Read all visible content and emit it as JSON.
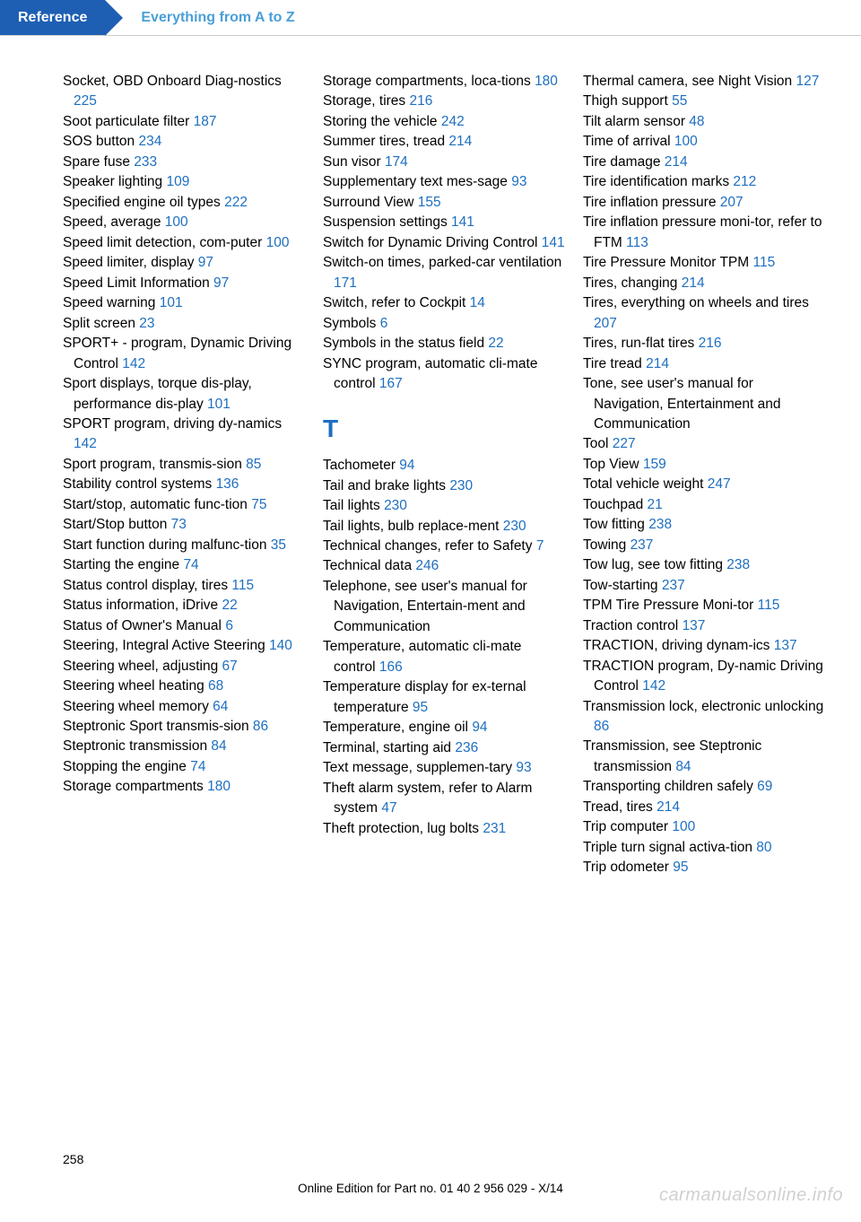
{
  "header": {
    "tab": "Reference",
    "title": "Everything from A to Z"
  },
  "link_color": "#1e6fc0",
  "text_color": "#000000",
  "tab_bg": "#1e5fb4",
  "columns": [
    {
      "entries": [
        {
          "text": "Socket, OBD Onboard Diag‐nostics",
          "page": "225"
        },
        {
          "text": "Soot particulate filter",
          "page": "187"
        },
        {
          "text": "SOS button",
          "page": "234"
        },
        {
          "text": "Spare fuse",
          "page": "233"
        },
        {
          "text": "Speaker lighting",
          "page": "109"
        },
        {
          "text": "Specified engine oil types",
          "page": "222"
        },
        {
          "text": "Speed, average",
          "page": "100"
        },
        {
          "text": "Speed limit detection, com‐puter",
          "page": "100"
        },
        {
          "text": "Speed limiter, display",
          "page": "97"
        },
        {
          "text": "Speed Limit Information",
          "page": "97"
        },
        {
          "text": "Speed warning",
          "page": "101"
        },
        {
          "text": "Split screen",
          "page": "23"
        },
        {
          "text": "SPORT+ - program, Dynamic Driving Control",
          "page": "142"
        },
        {
          "text": "Sport displays, torque dis‐play, performance dis‐play",
          "page": "101"
        },
        {
          "text": "SPORT program, driving dy‐namics",
          "page": "142"
        },
        {
          "text": "Sport program, transmis‐sion",
          "page": "85"
        },
        {
          "text": "Stability control systems",
          "page": "136"
        },
        {
          "text": "Start/stop, automatic func‐tion",
          "page": "75"
        },
        {
          "text": "Start/Stop button",
          "page": "73"
        },
        {
          "text": "Start function during malfunc‐tion",
          "page": "35"
        },
        {
          "text": "Starting the engine",
          "page": "74"
        },
        {
          "text": "Status control display, tires",
          "page": "115"
        },
        {
          "text": "Status information, iDrive",
          "page": "22"
        },
        {
          "text": "Status of Owner's Manual",
          "page": "6"
        },
        {
          "text": "Steering, Integral Active Steering",
          "page": "140"
        },
        {
          "text": "Steering wheel, adjusting",
          "page": "67"
        },
        {
          "text": "Steering wheel heating",
          "page": "68"
        },
        {
          "text": "Steering wheel memory",
          "page": "64"
        },
        {
          "text": "Steptronic Sport transmis‐sion",
          "page": "86"
        },
        {
          "text": "Steptronic transmission",
          "page": "84"
        },
        {
          "text": "Stopping the engine",
          "page": "74"
        },
        {
          "text": "Storage compartments",
          "page": "180"
        }
      ]
    },
    {
      "entries": [
        {
          "text": "Storage compartments, loca‐tions",
          "page": "180"
        },
        {
          "text": "Storage, tires",
          "page": "216"
        },
        {
          "text": "Storing the vehicle",
          "page": "242"
        },
        {
          "text": "Summer tires, tread",
          "page": "214"
        },
        {
          "text": "Sun visor",
          "page": "174"
        },
        {
          "text": "Supplementary text mes‐sage",
          "page": "93"
        },
        {
          "text": "Surround View",
          "page": "155"
        },
        {
          "text": "Suspension settings",
          "page": "141"
        },
        {
          "text": "Switch for Dynamic Driving Control",
          "page": "141"
        },
        {
          "text": "Switch-on times, parked-car ventilation",
          "page": "171"
        },
        {
          "text": "Switch, refer to Cockpit",
          "page": "14"
        },
        {
          "text": "Symbols",
          "page": "6"
        },
        {
          "text": "Symbols in the status field",
          "page": "22"
        },
        {
          "text": "SYNC program, automatic cli‐mate control",
          "page": "167"
        }
      ],
      "section": "T",
      "entries2": [
        {
          "text": "Tachometer",
          "page": "94"
        },
        {
          "text": "Tail and brake lights",
          "page": "230"
        },
        {
          "text": "Tail lights",
          "page": "230"
        },
        {
          "text": "Tail lights, bulb replace‐ment",
          "page": "230"
        },
        {
          "text": "Technical changes, refer to Safety",
          "page": "7"
        },
        {
          "text": "Technical data",
          "page": "246"
        },
        {
          "text": "Telephone, see user's manual for Navigation, Entertain‐ment and Communication",
          "page": ""
        },
        {
          "text": "Temperature, automatic cli‐mate control",
          "page": "166"
        },
        {
          "text": "Temperature display for ex‐ternal temperature",
          "page": "95"
        },
        {
          "text": "Temperature, engine oil",
          "page": "94"
        },
        {
          "text": "Terminal, starting aid",
          "page": "236"
        },
        {
          "text": "Text message, supplemen‐tary",
          "page": "93"
        },
        {
          "text": "Theft alarm system, refer to Alarm system",
          "page": "47"
        },
        {
          "text": "Theft protection, lug bolts",
          "page": "231"
        }
      ]
    },
    {
      "entries": [
        {
          "text": "Thermal camera, see Night Vision",
          "page": "127"
        },
        {
          "text": "Thigh support",
          "page": "55"
        },
        {
          "text": "Tilt alarm sensor",
          "page": "48"
        },
        {
          "text": "Time of arrival",
          "page": "100"
        },
        {
          "text": "Tire damage",
          "page": "214"
        },
        {
          "text": "Tire identification marks",
          "page": "212"
        },
        {
          "text": "Tire inflation pressure",
          "page": "207"
        },
        {
          "text": "Tire inflation pressure moni‐tor, refer to FTM",
          "page": "113"
        },
        {
          "text": "Tire Pressure Monitor TPM",
          "page": "115"
        },
        {
          "text": "Tires, changing",
          "page": "214"
        },
        {
          "text": "Tires, everything on wheels and tires",
          "page": "207"
        },
        {
          "text": "Tires, run-flat tires",
          "page": "216"
        },
        {
          "text": "Tire tread",
          "page": "214"
        },
        {
          "text": "Tone, see user's manual for Navigation, Entertainment and Communication",
          "page": ""
        },
        {
          "text": "Tool",
          "page": "227"
        },
        {
          "text": "Top View",
          "page": "159"
        },
        {
          "text": "Total vehicle weight",
          "page": "247"
        },
        {
          "text": "Touchpad",
          "page": "21"
        },
        {
          "text": "Tow fitting",
          "page": "238"
        },
        {
          "text": "Towing",
          "page": "237"
        },
        {
          "text": "Tow lug, see tow fitting",
          "page": "238"
        },
        {
          "text": "Tow-starting",
          "page": "237"
        },
        {
          "text": "TPM Tire Pressure Moni‐tor",
          "page": "115"
        },
        {
          "text": "Traction control",
          "page": "137"
        },
        {
          "text": "TRACTION, driving dynam‐ics",
          "page": "137"
        },
        {
          "text": "TRACTION program, Dy‐namic Driving Control",
          "page": "142"
        },
        {
          "text": "Transmission lock, electronic unlocking",
          "page": "86"
        },
        {
          "text": "Transmission, see Steptronic transmission",
          "page": "84"
        },
        {
          "text": "Transporting children safely",
          "page": "69"
        },
        {
          "text": "Tread, tires",
          "page": "214"
        },
        {
          "text": "Trip computer",
          "page": "100"
        },
        {
          "text": "Triple turn signal activa‐tion",
          "page": "80"
        },
        {
          "text": "Trip odometer",
          "page": "95"
        }
      ]
    }
  ],
  "page_number": "258",
  "footer": "Online Edition for Part no. 01 40 2 956 029 - X/14",
  "watermark": "carmanualsonline.info"
}
